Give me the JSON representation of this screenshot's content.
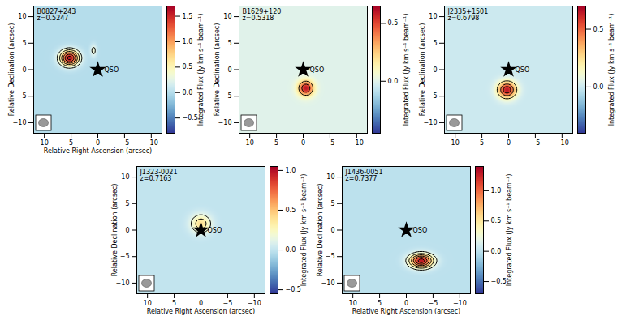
{
  "chart_data": [
    {
      "type": "contour_map",
      "title": "B0827+243",
      "subtitle": "z=0.5247",
      "xlabel": "Relative Right Ascension (arcsec)",
      "ylabel": "Relative Declination (arcsec)",
      "xlim": [
        12,
        -12
      ],
      "ylim": [
        -12,
        12
      ],
      "xticks": [
        10,
        5,
        0,
        -5,
        -10
      ],
      "yticks": [
        -10,
        -5,
        0,
        5,
        10
      ],
      "sources": [
        {
          "x": 5.3,
          "y": 2.2,
          "peak": 1.6,
          "sigma_x": 1.2,
          "sigma_y": 1.0
        },
        {
          "x": 0.8,
          "y": 3.6,
          "peak": 0.35,
          "sigma_x": 0.4,
          "sigma_y": 0.8
        }
      ],
      "contour_levels": [
        0.25,
        0.5,
        0.75,
        1.0,
        1.25,
        1.5
      ],
      "qso": {
        "x": 0,
        "y": 0,
        "label": "QSO"
      },
      "marker": "star",
      "colorbar": {
        "label": "Integrated Flux (Jy km s⁻¹ beam⁻¹)",
        "range": [
          -0.8,
          1.7
        ],
        "ticks": [
          {
            "value": -0.5,
            "label": "−0.5"
          },
          {
            "value": 0,
            "label": "0.0"
          },
          {
            "value": 0.5,
            "label": "0.5"
          },
          {
            "value": 1.0,
            "label": "1.0"
          },
          {
            "value": 1.5,
            "label": "1.5"
          }
        ]
      }
    },
    {
      "type": "contour_map",
      "title": "B1629+120",
      "subtitle": "z=0.5318",
      "xlabel": null,
      "ylabel": "Relative Declination (arcsec)",
      "xlim": [
        12,
        -12
      ],
      "ylim": [
        -12,
        12
      ],
      "xticks": [
        10,
        5,
        0,
        -5,
        -10
      ],
      "yticks": [
        -10,
        -5,
        0,
        5,
        10
      ],
      "sources": [
        {
          "x": -0.5,
          "y": -3.5,
          "peak": 0.6,
          "sigma_x": 1.0,
          "sigma_y": 1.0
        }
      ],
      "contour_levels": [
        0.25,
        0.45
      ],
      "qso": {
        "x": 0,
        "y": 0,
        "label": "QSO"
      },
      "marker": "star",
      "colorbar": {
        "label": "Integrated Flux (Jy km s⁻¹ beam⁻¹)",
        "range": [
          -0.45,
          0.65
        ],
        "ticks": [
          {
            "value": 0,
            "label": "0.0"
          },
          {
            "value": 0.5,
            "label": "0.5"
          }
        ]
      }
    },
    {
      "type": "contour_map",
      "title": "J2335+1501",
      "subtitle": "z=0.6798",
      "xlabel": null,
      "ylabel": "Relative Declination (arcsec)",
      "xlim": [
        12,
        -12
      ],
      "ylim": [
        -12,
        12
      ],
      "xticks": [
        10,
        5,
        0,
        -5,
        -10
      ],
      "yticks": [
        -10,
        -5,
        0,
        5,
        10
      ],
      "sources": [
        {
          "x": 0.3,
          "y": -3.8,
          "peak": 0.65,
          "sigma_x": 1.2,
          "sigma_y": 1.1
        }
      ],
      "contour_levels": [
        0.2,
        0.4,
        0.55
      ],
      "qso": {
        "x": 0,
        "y": 0,
        "label": "QSO"
      },
      "marker": "star",
      "colorbar": {
        "label": "Integrated Flux (Jy km s⁻¹ beam⁻¹)",
        "range": [
          -0.4,
          0.7
        ],
        "ticks": [
          {
            "value": 0,
            "label": "0.0"
          },
          {
            "value": 0.5,
            "label": "0.5"
          }
        ]
      }
    },
    {
      "type": "contour_map",
      "title": "J1323-0021",
      "subtitle": "z=0.7163",
      "xlabel": "Relative Right Ascension (arcsec)",
      "ylabel": "Relative Declination (arcsec)",
      "xlim": [
        12,
        -12
      ],
      "ylim": [
        -12,
        12
      ],
      "xticks": [
        10,
        5,
        0,
        -5,
        -10
      ],
      "yticks": [
        -10,
        -5,
        0,
        5,
        10
      ],
      "sources": [
        {
          "x": 0,
          "y": 1.2,
          "peak": 0.4,
          "sigma_x": 1.3,
          "sigma_y": 1.2
        }
      ],
      "contour_levels": [
        0.15,
        0.3
      ],
      "qso": {
        "x": 0,
        "y": 0,
        "label": "QSO"
      },
      "marker": "star",
      "colorbar": {
        "label": "Integrated Flux (Jy km s⁻¹ beam⁻¹)",
        "range": [
          -0.55,
          1.05
        ],
        "ticks": [
          {
            "value": -0.5,
            "label": "−0.5"
          },
          {
            "value": 0,
            "label": "0.0"
          },
          {
            "value": 0.5,
            "label": "0.5"
          },
          {
            "value": 1.0,
            "label": "1.0"
          }
        ]
      }
    },
    {
      "type": "contour_map",
      "title": "J1436-0051",
      "subtitle": "z=0.7377",
      "xlabel": "Relative Right Ascension (arcsec)",
      "ylabel": "Relative Declination (arcsec)",
      "xlim": [
        12,
        -12
      ],
      "ylim": [
        -12,
        12
      ],
      "xticks": [
        10,
        5,
        0,
        -5,
        -10
      ],
      "yticks": [
        -10,
        -5,
        0,
        5,
        10
      ],
      "sources": [
        {
          "x": -2.8,
          "y": -5.8,
          "peak": 1.3,
          "sigma_x": 1.5,
          "sigma_y": 0.9
        }
      ],
      "contour_levels": [
        0.2,
        0.4,
        0.6,
        0.8,
        1.0,
        1.2
      ],
      "qso": {
        "x": 0,
        "y": 0,
        "label": "QSO"
      },
      "marker": "star",
      "colorbar": {
        "label": "Integrated Flux (Jy km s⁻¹ beam⁻¹)",
        "range": [
          -0.7,
          1.4
        ],
        "ticks": [
          {
            "value": -0.5,
            "label": "−0.5"
          },
          {
            "value": 0,
            "label": "0.0"
          },
          {
            "value": 0.5,
            "label": "0.5"
          },
          {
            "value": 1.0,
            "label": "1.0"
          }
        ]
      }
    }
  ]
}
